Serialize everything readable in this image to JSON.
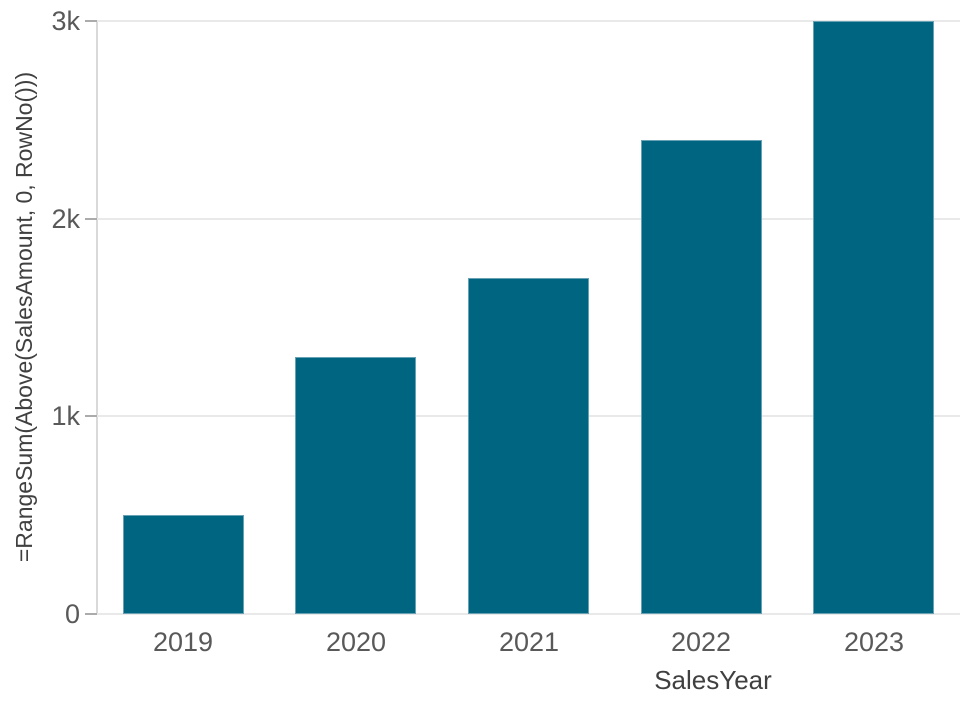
{
  "chart_data": {
    "type": "bar",
    "title": "",
    "categories": [
      "2019",
      "2020",
      "2021",
      "2022",
      "2023"
    ],
    "values": [
      500,
      1300,
      1700,
      2400,
      3000
    ],
    "xlabel": "SalesYear",
    "ylabel": "=RangeSum(Above(SalesAmount, 0, RowNo()))",
    "ylim": [
      0,
      3000
    ],
    "yticks": [
      {
        "value": 0,
        "label": "0"
      },
      {
        "value": 1000,
        "label": "1k"
      },
      {
        "value": 2000,
        "label": "2k"
      },
      {
        "value": 3000,
        "label": "3k"
      }
    ],
    "grid": true,
    "legend": false,
    "bar_color": "#006580",
    "gridline_color": "#e9e9e9",
    "axis_line_color": "#d9d9d9",
    "tick_text_color": "#595959",
    "axis_title_color": "#404040"
  }
}
